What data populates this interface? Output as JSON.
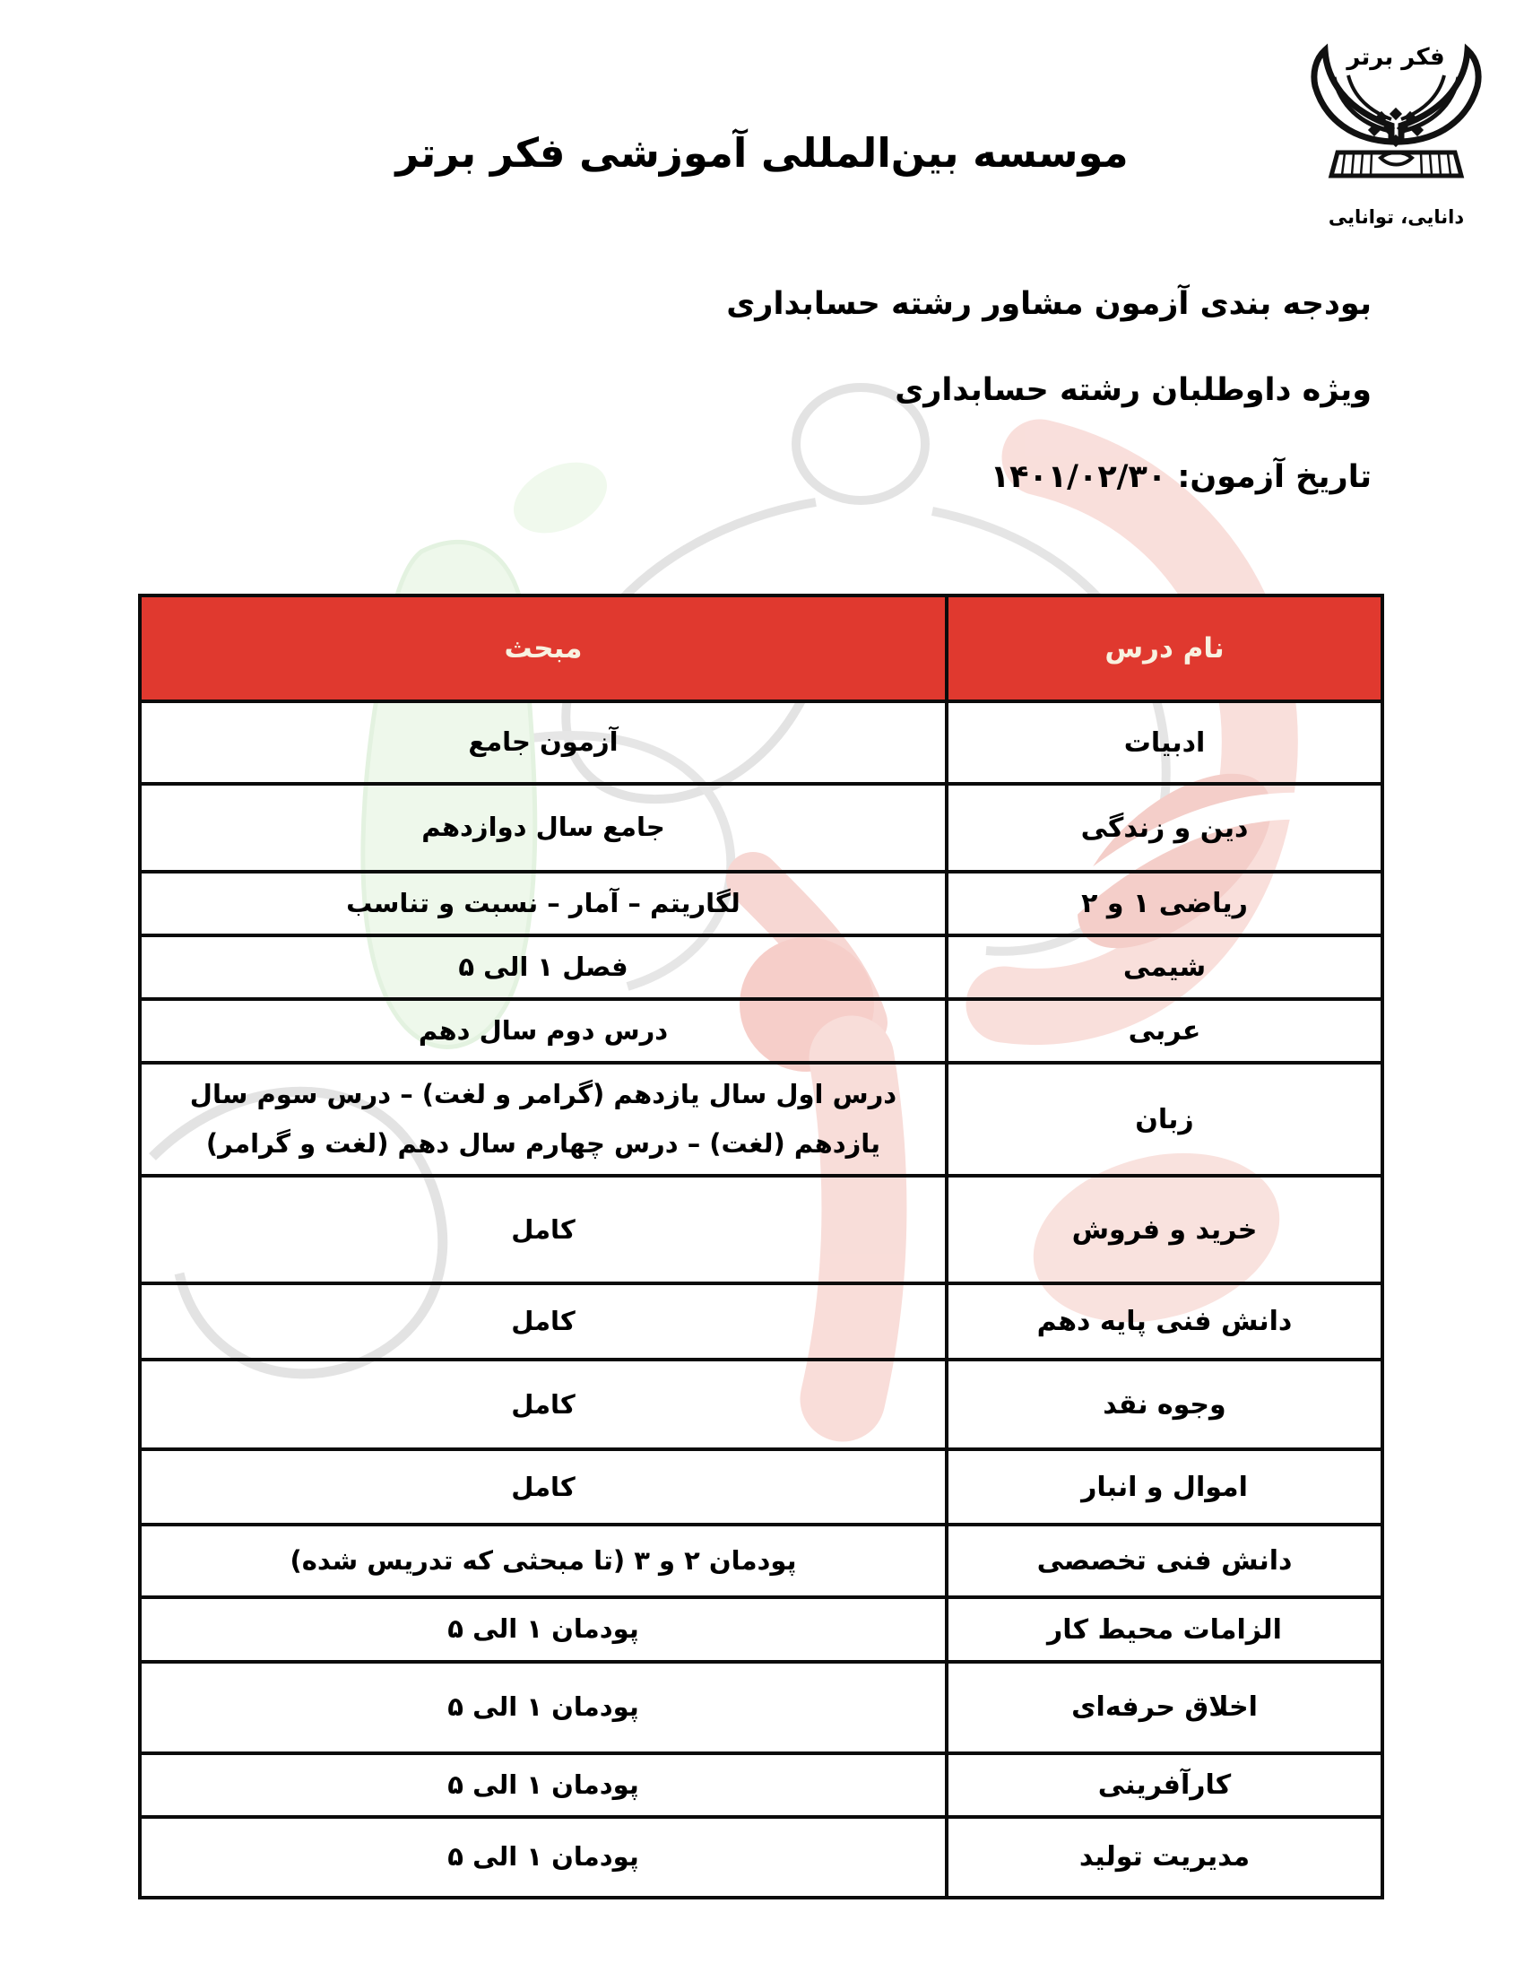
{
  "header": {
    "title": "موسسه بین‌المللی آموزشی فکر برتر",
    "subtitle_line1": "بودجه بندی آزمون مشاور رشته حسابداری",
    "subtitle_line2": "ویژه داوطلبان رشته حسابداری",
    "subtitle_line3": "تاریخ آزمون: ۱۴۰۱/۰۲/۳۰"
  },
  "logo": {
    "name": "فکر برتر",
    "motto": "دانایی، توانایی"
  },
  "table": {
    "header_bg": "#e0392f",
    "header_fg": "#f8f1e0",
    "headers": {
      "course": "نام درس",
      "topic": "مبحث"
    },
    "rows": [
      {
        "course": "ادبیات",
        "topic": "آزمون جامع"
      },
      {
        "course": "دین و زندگی",
        "topic": "جامع سال دوازدهم"
      },
      {
        "course": "ریاضی ۱ و ۲",
        "topic": "لگاریتم – آمار – نسبت و تناسب"
      },
      {
        "course": "شیمی",
        "topic": "فصل ۱ الی ۵"
      },
      {
        "course": "عربی",
        "topic": "درس دوم سال دهم"
      },
      {
        "course": "زبان",
        "topic": "درس اول سال یازدهم (گرامر و لغت) – درس سوم سال یازدهم (لغت) – درس چهارم سال دهم (لغت و گرامر)"
      },
      {
        "course": "خرید و فروش",
        "topic": "کامل"
      },
      {
        "course": "دانش فنی پایه دهم",
        "topic": "کامل"
      },
      {
        "course": "وجوه نقد",
        "topic": "کامل"
      },
      {
        "course": "اموال و انبار",
        "topic": "کامل"
      },
      {
        "course": "دانش فنی تخصصی",
        "topic": "پودمان ۲ و ۳ (تا مبحثی که تدریس شده)"
      },
      {
        "course": "الزامات محیط کار",
        "topic": "پودمان ۱ الی ۵"
      },
      {
        "course": "اخلاق حرفه‌ای",
        "topic": "پودمان ۱ الی ۵"
      },
      {
        "course": "کارآفرینی",
        "topic": "پودمان ۱ الی ۵"
      },
      {
        "course": "مدیریت تولید",
        "topic": "پودمان ۱ الی ۵"
      }
    ]
  }
}
